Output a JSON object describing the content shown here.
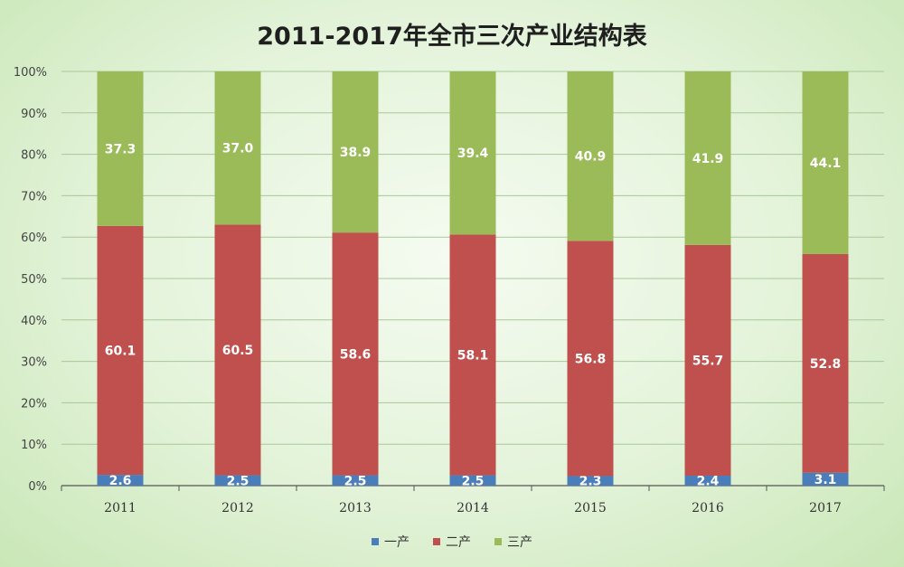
{
  "chart_data": {
    "type": "bar",
    "stacked": true,
    "title": "2011-2017年全市三次产业结构表",
    "categories": [
      "2011",
      "2012",
      "2013",
      "2014",
      "2015",
      "2016",
      "2017"
    ],
    "series": [
      {
        "name": "一产",
        "color": "#4a7ebb",
        "values": [
          2.6,
          2.5,
          2.5,
          2.5,
          2.3,
          2.4,
          3.1
        ]
      },
      {
        "name": "二产",
        "color": "#c0504d",
        "values": [
          60.1,
          60.5,
          58.6,
          58.1,
          56.8,
          55.7,
          52.8
        ]
      },
      {
        "name": "三产",
        "color": "#9bbb59",
        "values": [
          37.3,
          37.0,
          38.9,
          39.4,
          40.9,
          41.9,
          44.1
        ]
      }
    ],
    "y_ticks": [
      "0%",
      "10%",
      "20%",
      "30%",
      "40%",
      "50%",
      "60%",
      "70%",
      "80%",
      "90%",
      "100%"
    ],
    "ylim": [
      0,
      100
    ],
    "grid": true,
    "legend_position": "bottom",
    "data_labels": true
  }
}
